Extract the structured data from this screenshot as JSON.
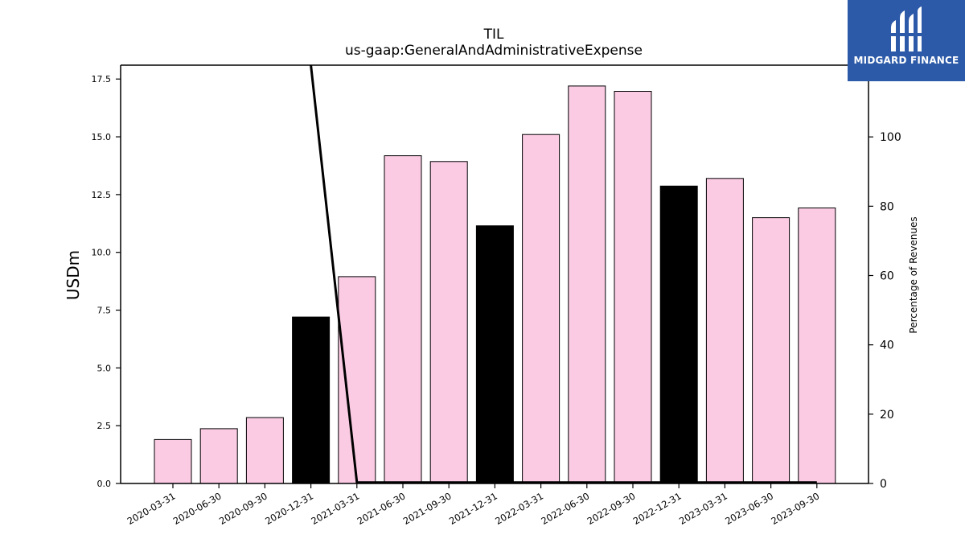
{
  "brand": {
    "name": "MIDGARD FINANCE",
    "color": "#2c5aa8"
  },
  "chart_data": {
    "type": "bar",
    "title": "TIL",
    "subtitle": "us-gaap:GeneralAndAdministrativeExpense",
    "ylabel": "USDm",
    "y2label": "Percentage of Revenues",
    "ylim": [
      0,
      18.1
    ],
    "y2lim": [
      0,
      120.7
    ],
    "yticks": [
      0.0,
      2.5,
      5.0,
      7.5,
      10.0,
      12.5,
      15.0,
      17.5
    ],
    "y2ticks": [
      0,
      20,
      40,
      60,
      80,
      100
    ],
    "categories": [
      "2020-03-31",
      "2020-06-30",
      "2020-09-30",
      "2020-12-31",
      "2021-03-31",
      "2021-06-30",
      "2021-09-30",
      "2021-12-31",
      "2022-03-31",
      "2022-06-30",
      "2022-09-30",
      "2022-12-31",
      "2023-03-31",
      "2023-06-30",
      "2023-09-30"
    ],
    "series": [
      {
        "values": [
          1.9,
          2.37,
          2.85,
          7.2,
          8.95,
          14.18,
          13.93,
          11.15,
          15.1,
          17.2,
          16.97,
          12.87,
          13.2,
          11.5,
          11.92
        ],
        "colors": [
          "#fbcbe4",
          "#fbcbe4",
          "#fbcbe4",
          "#000000",
          "#fbcbe4",
          "#fbcbe4",
          "#fbcbe4",
          "#000000",
          "#fbcbe4",
          "#fbcbe4",
          "#fbcbe4",
          "#000000",
          "#fbcbe4",
          "#fbcbe4",
          "#fbcbe4"
        ]
      },
      {
        "axis": "right",
        "type": "line",
        "color": "#000000",
        "values": [
          null,
          null,
          null,
          120.7,
          0.3,
          0.3,
          0.3,
          0.3,
          0.3,
          0.3,
          0.3,
          0.3,
          0.3,
          0.3,
          0.3
        ]
      }
    ],
    "colors": {
      "bar": "#fbcbe4",
      "highlight": "#000000",
      "edge": "#000000"
    },
    "grid": false
  }
}
